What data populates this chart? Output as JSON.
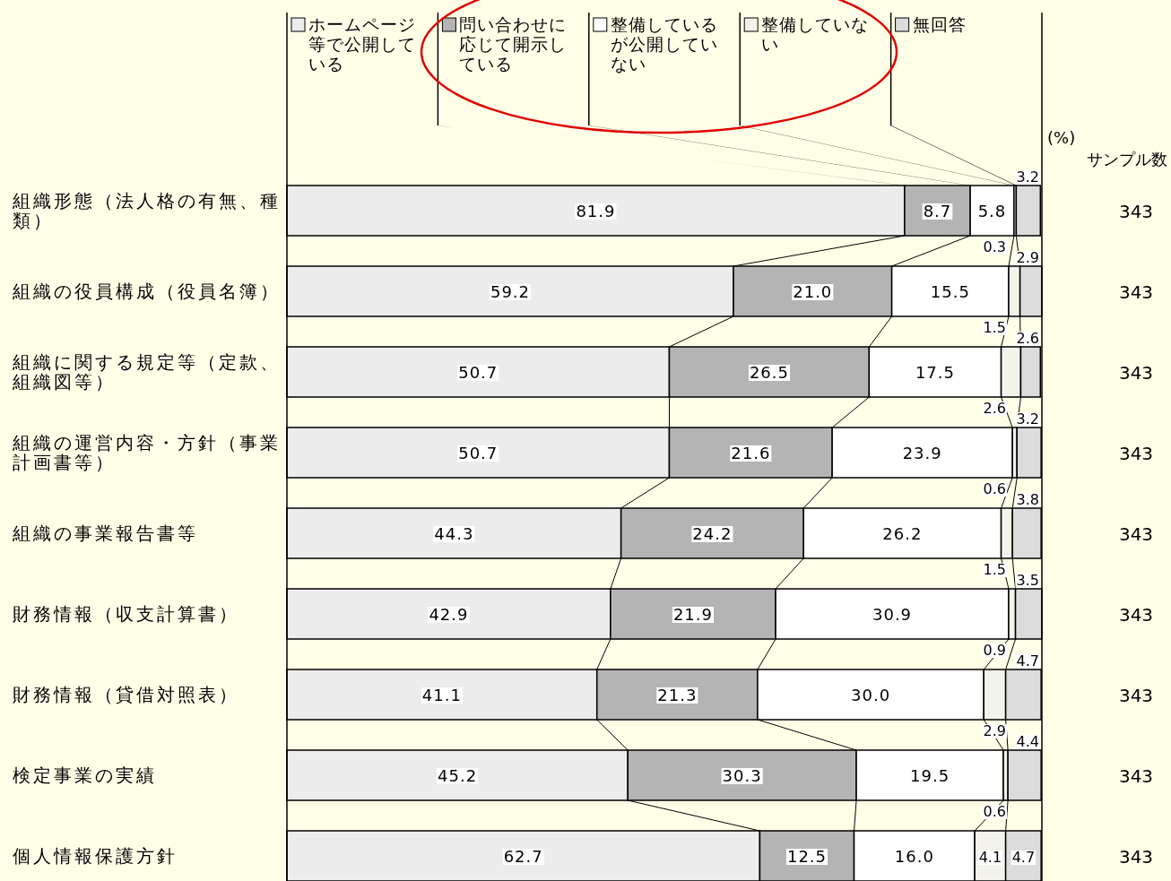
{
  "chart_data": {
    "type": "bar",
    "orientation": "horizontal",
    "stacked": true,
    "legend": "top",
    "data_labels": true,
    "categories": [
      "組織形態（法人格の有無、種類）",
      "組織の役員構成（役員名簿）",
      "組織に関する規定等（定款、組織図等）",
      "組織の運営内容・方針（事業計画書等）",
      "組織の事業報告書等",
      "財務情報（収支計算書）",
      "財務情報（貸借対照表）",
      "検定事業の実績",
      "個人情報保護方針"
    ],
    "series": [
      {
        "name": "ホームページ等で公開している",
        "color": "#ececec",
        "values": [
          81.9,
          59.2,
          50.7,
          50.7,
          44.3,
          42.9,
          41.1,
          45.2,
          62.7
        ],
        "value_labels": [
          "81.9",
          "59.2",
          "50.7",
          "50.7",
          "44.3",
          "42.9",
          "41.1",
          "45.2",
          "62.7"
        ]
      },
      {
        "name": "問い合わせに応じて開示している",
        "color": "#b4b4b4",
        "values": [
          8.7,
          21.0,
          26.5,
          21.6,
          24.2,
          21.9,
          21.3,
          30.3,
          12.5
        ],
        "value_labels": [
          "8.7",
          "21.0",
          "26.5",
          "21.6",
          "24.2",
          "21.9",
          "21.3",
          "30.3",
          "12.5"
        ]
      },
      {
        "name": "整備しているが公開していない",
        "color": "#ffffff",
        "values": [
          5.8,
          15.5,
          17.5,
          23.9,
          26.2,
          30.9,
          30.0,
          19.5,
          16.0
        ],
        "value_labels": [
          "5.8",
          "15.5",
          "17.5",
          "23.9",
          "26.2",
          "30.9",
          "30.0",
          "19.5",
          "16.0"
        ]
      },
      {
        "name": "整備していない",
        "color": "#f3f3ec",
        "values": [
          0.3,
          1.5,
          2.6,
          0.6,
          1.5,
          0.9,
          2.9,
          0.6,
          4.1
        ],
        "value_labels": [
          "0.3",
          "1.5",
          "2.6",
          "0.6",
          "1.5",
          "0.9",
          "2.9",
          "0.6",
          "4.1"
        ]
      },
      {
        "name": "無回答",
        "color": "#dcdcdc",
        "values": [
          3.2,
          2.9,
          2.6,
          3.2,
          3.8,
          3.5,
          4.7,
          4.4,
          4.7
        ],
        "value_labels": [
          "3.2",
          "2.9",
          "2.6",
          "3.2",
          "3.8",
          "3.5",
          "4.7",
          "4.4",
          "4.7"
        ]
      }
    ],
    "annotations": [
      "(%)",
      "サンプル数",
      "343",
      "343",
      "343",
      "343",
      "343",
      "343",
      "343",
      "343",
      "343"
    ]
  }
}
